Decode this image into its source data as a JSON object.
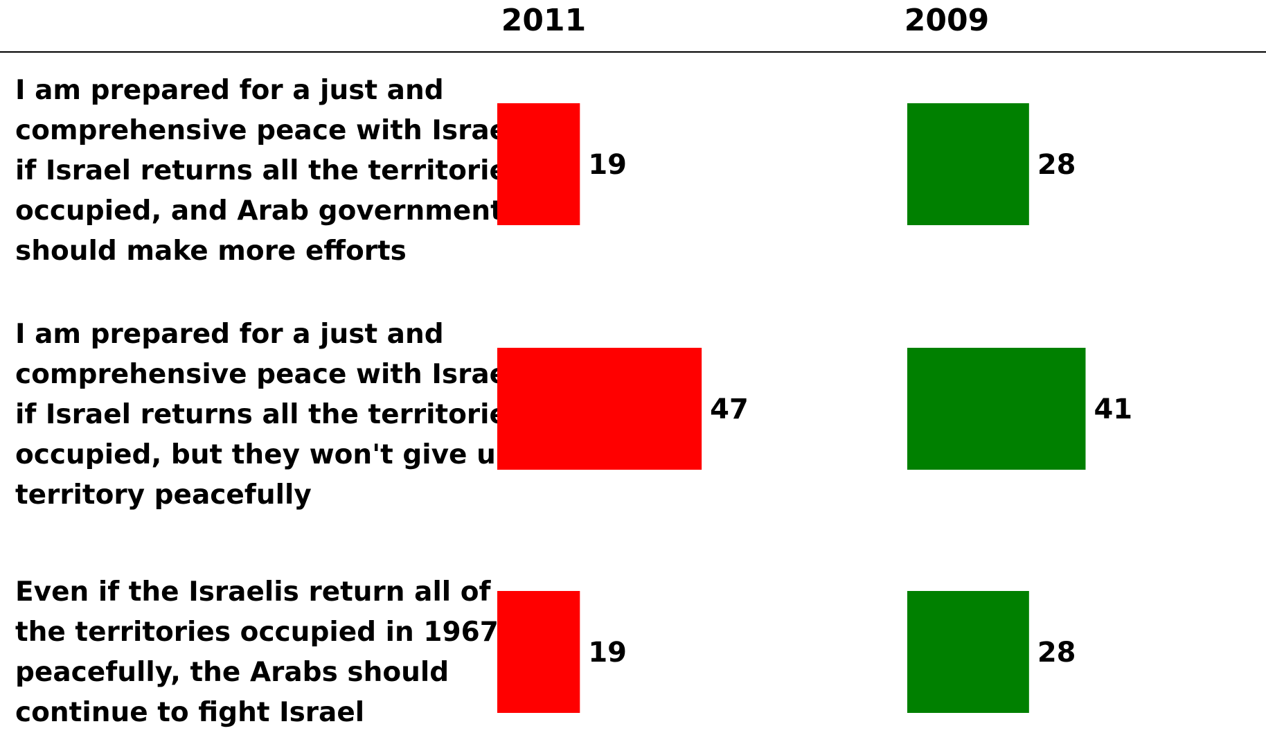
{
  "chart_data": {
    "type": "bar",
    "orientation": "horizontal",
    "categories": [
      [
        "I am prepared for a just and",
        "comprehensive peace with Israel",
        "if Israel returns all the territories",
        "occupied, and Arab governments",
        "should make more efforts"
      ],
      [
        "I am prepared for a just and",
        "comprehensive peace with Israel",
        "if Israel returns all the territories",
        "occupied, but they won't give up",
        "territory peacefully"
      ],
      [
        "Even if the Israelis return all of",
        "the territories occupied in 1967",
        "peacefully, the Arabs should",
        "continue to fight Israel"
      ]
    ],
    "series": [
      {
        "name": "2011",
        "values": [
          19,
          47,
          19
        ],
        "color": "#ff0000"
      },
      {
        "name": "2009",
        "values": [
          28,
          41,
          28
        ],
        "color": "#008000"
      }
    ],
    "data_labels": true,
    "grid": false,
    "legend": "none",
    "xlim": [
      0,
      100
    ]
  }
}
